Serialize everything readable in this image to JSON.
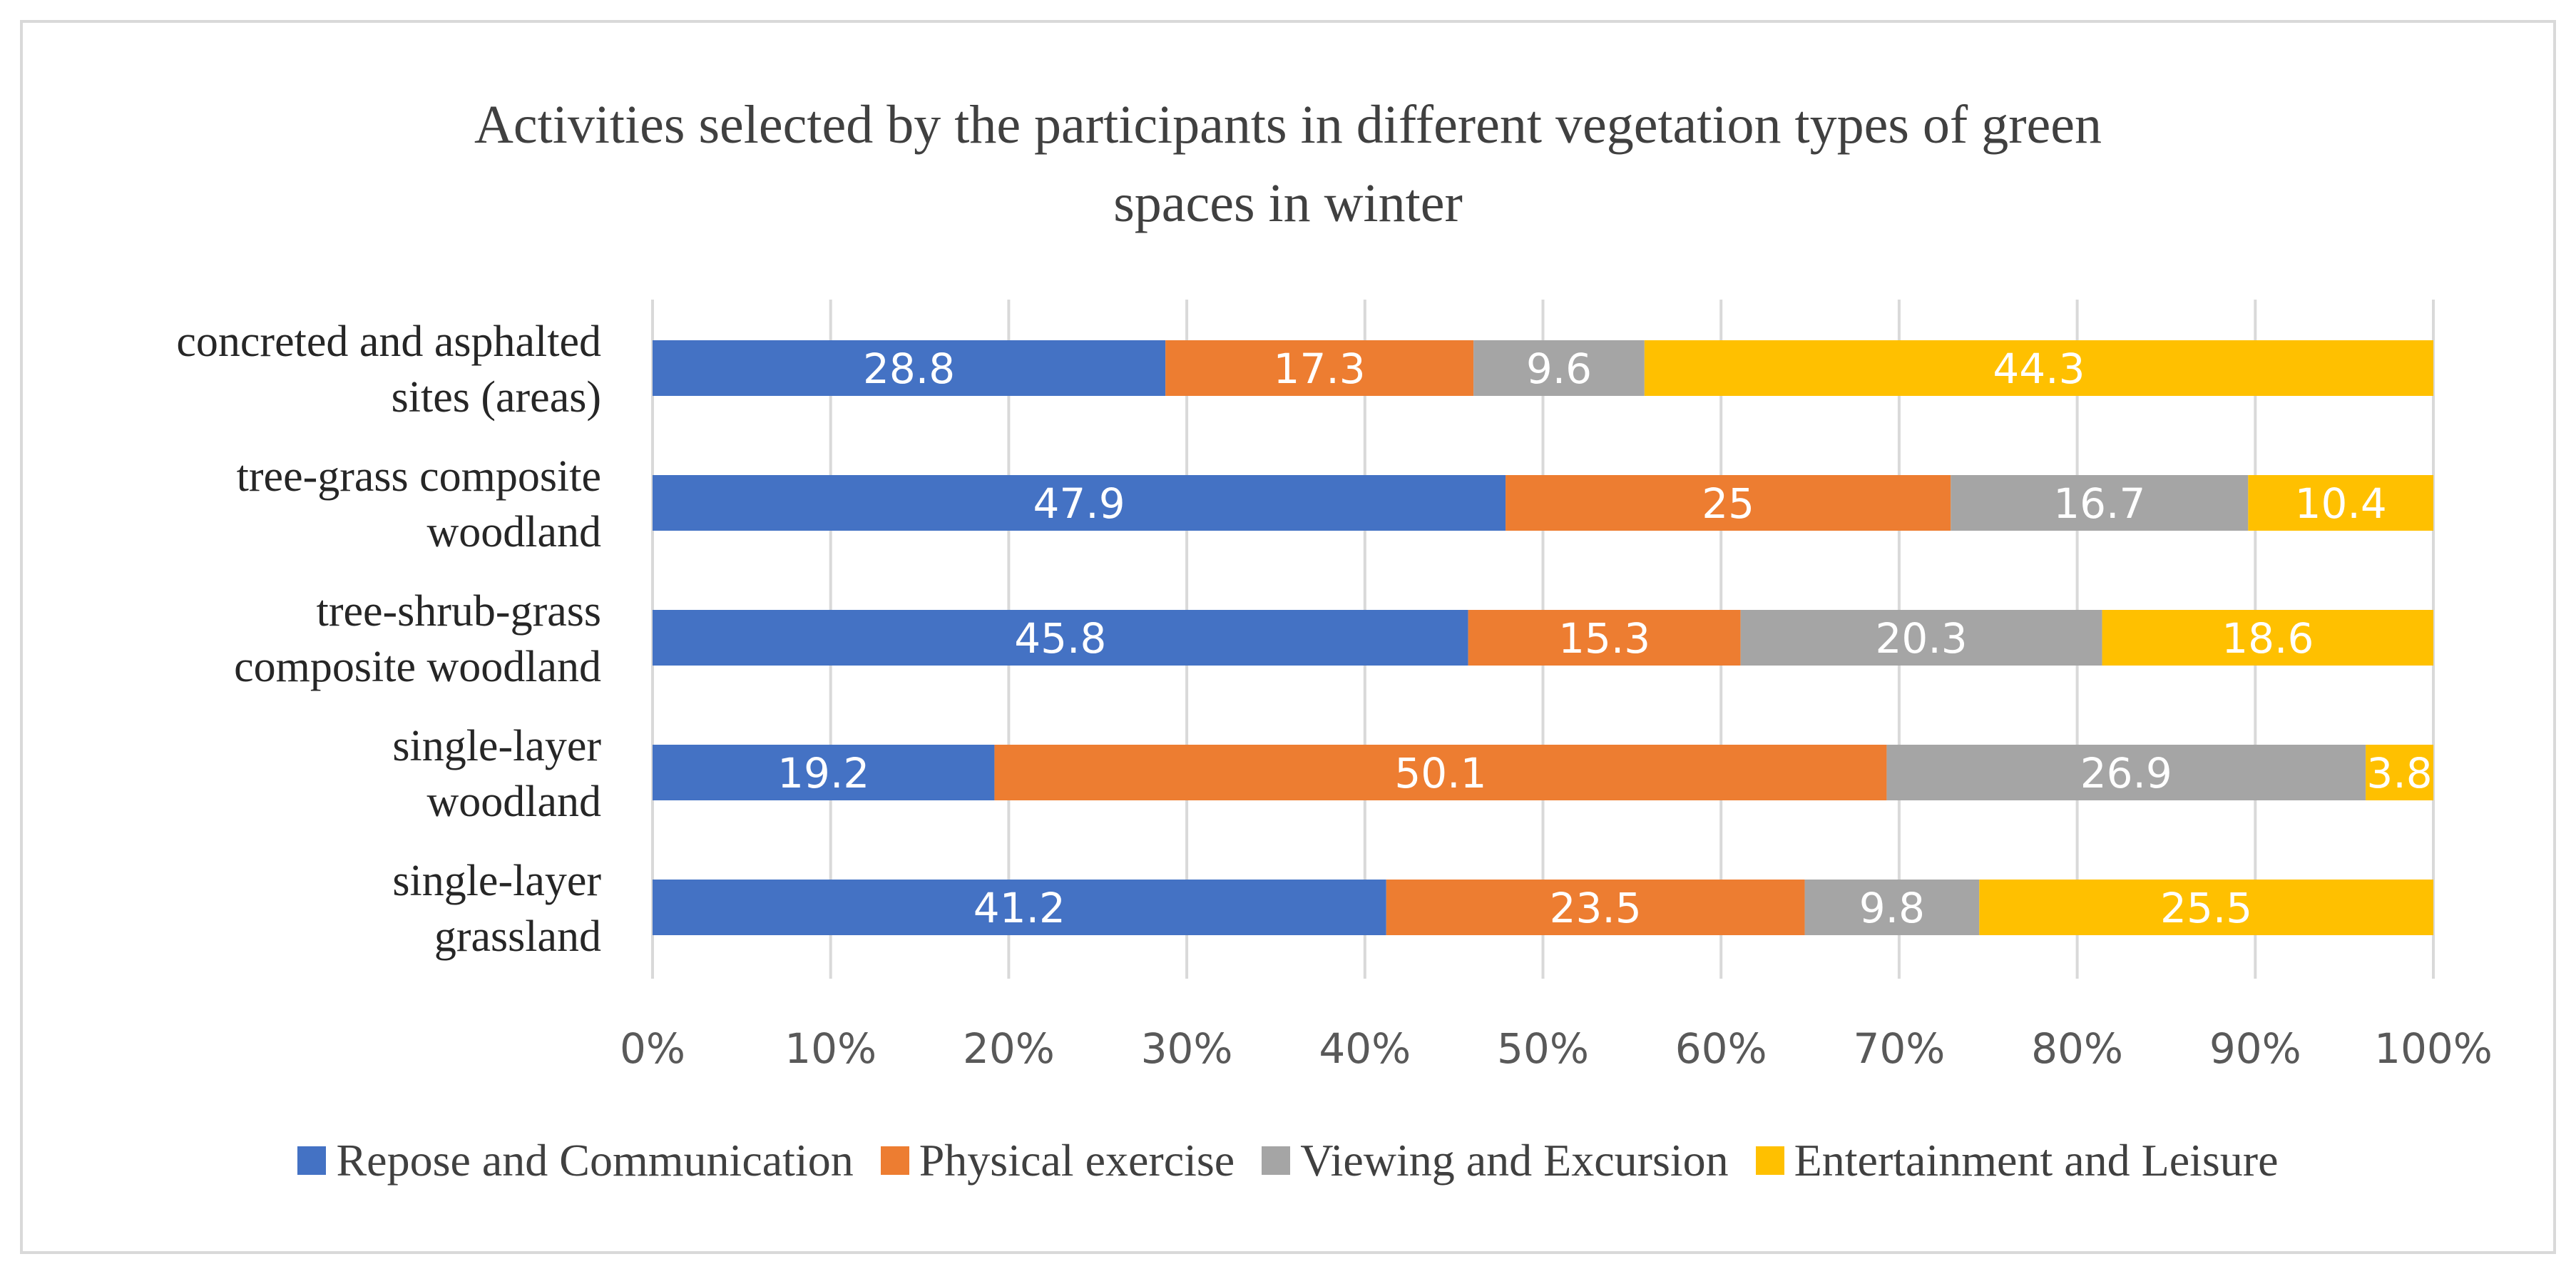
{
  "chart_data": {
    "type": "bar",
    "orientation": "horizontal",
    "stacked": "percent",
    "title": [
      "Activities selected by the participants in different vegetation types of  green",
      "spaces in winter"
    ],
    "categories": [
      [
        "concreted and asphalted",
        "sites (areas)"
      ],
      [
        "tree-grass composite",
        "woodland"
      ],
      [
        "tree-shrub-grass",
        "composite woodland"
      ],
      [
        "single-layer",
        "woodland"
      ],
      [
        "single-layer",
        "grassland"
      ]
    ],
    "series": [
      {
        "name": "Repose and Communication",
        "color": "#4472c4",
        "values": [
          28.8,
          47.9,
          45.8,
          19.2,
          41.2
        ]
      },
      {
        "name": "Physical exercise",
        "color": "#ed7d31",
        "values": [
          17.3,
          25,
          15.3,
          50.1,
          23.5
        ]
      },
      {
        "name": "Viewing and Excursion",
        "color": "#a5a5a5",
        "values": [
          9.6,
          16.7,
          20.3,
          26.9,
          9.8
        ]
      },
      {
        "name": "Entertainment and Leisure",
        "color": "#ffc000",
        "values": [
          44.3,
          10.4,
          18.6,
          3.8,
          25.5
        ]
      }
    ],
    "x_ticks": [
      "0%",
      "10%",
      "20%",
      "30%",
      "40%",
      "50%",
      "60%",
      "70%",
      "80%",
      "90%",
      "100%"
    ],
    "xlim": [
      0,
      100
    ],
    "grid": true,
    "legend": "bottom"
  }
}
